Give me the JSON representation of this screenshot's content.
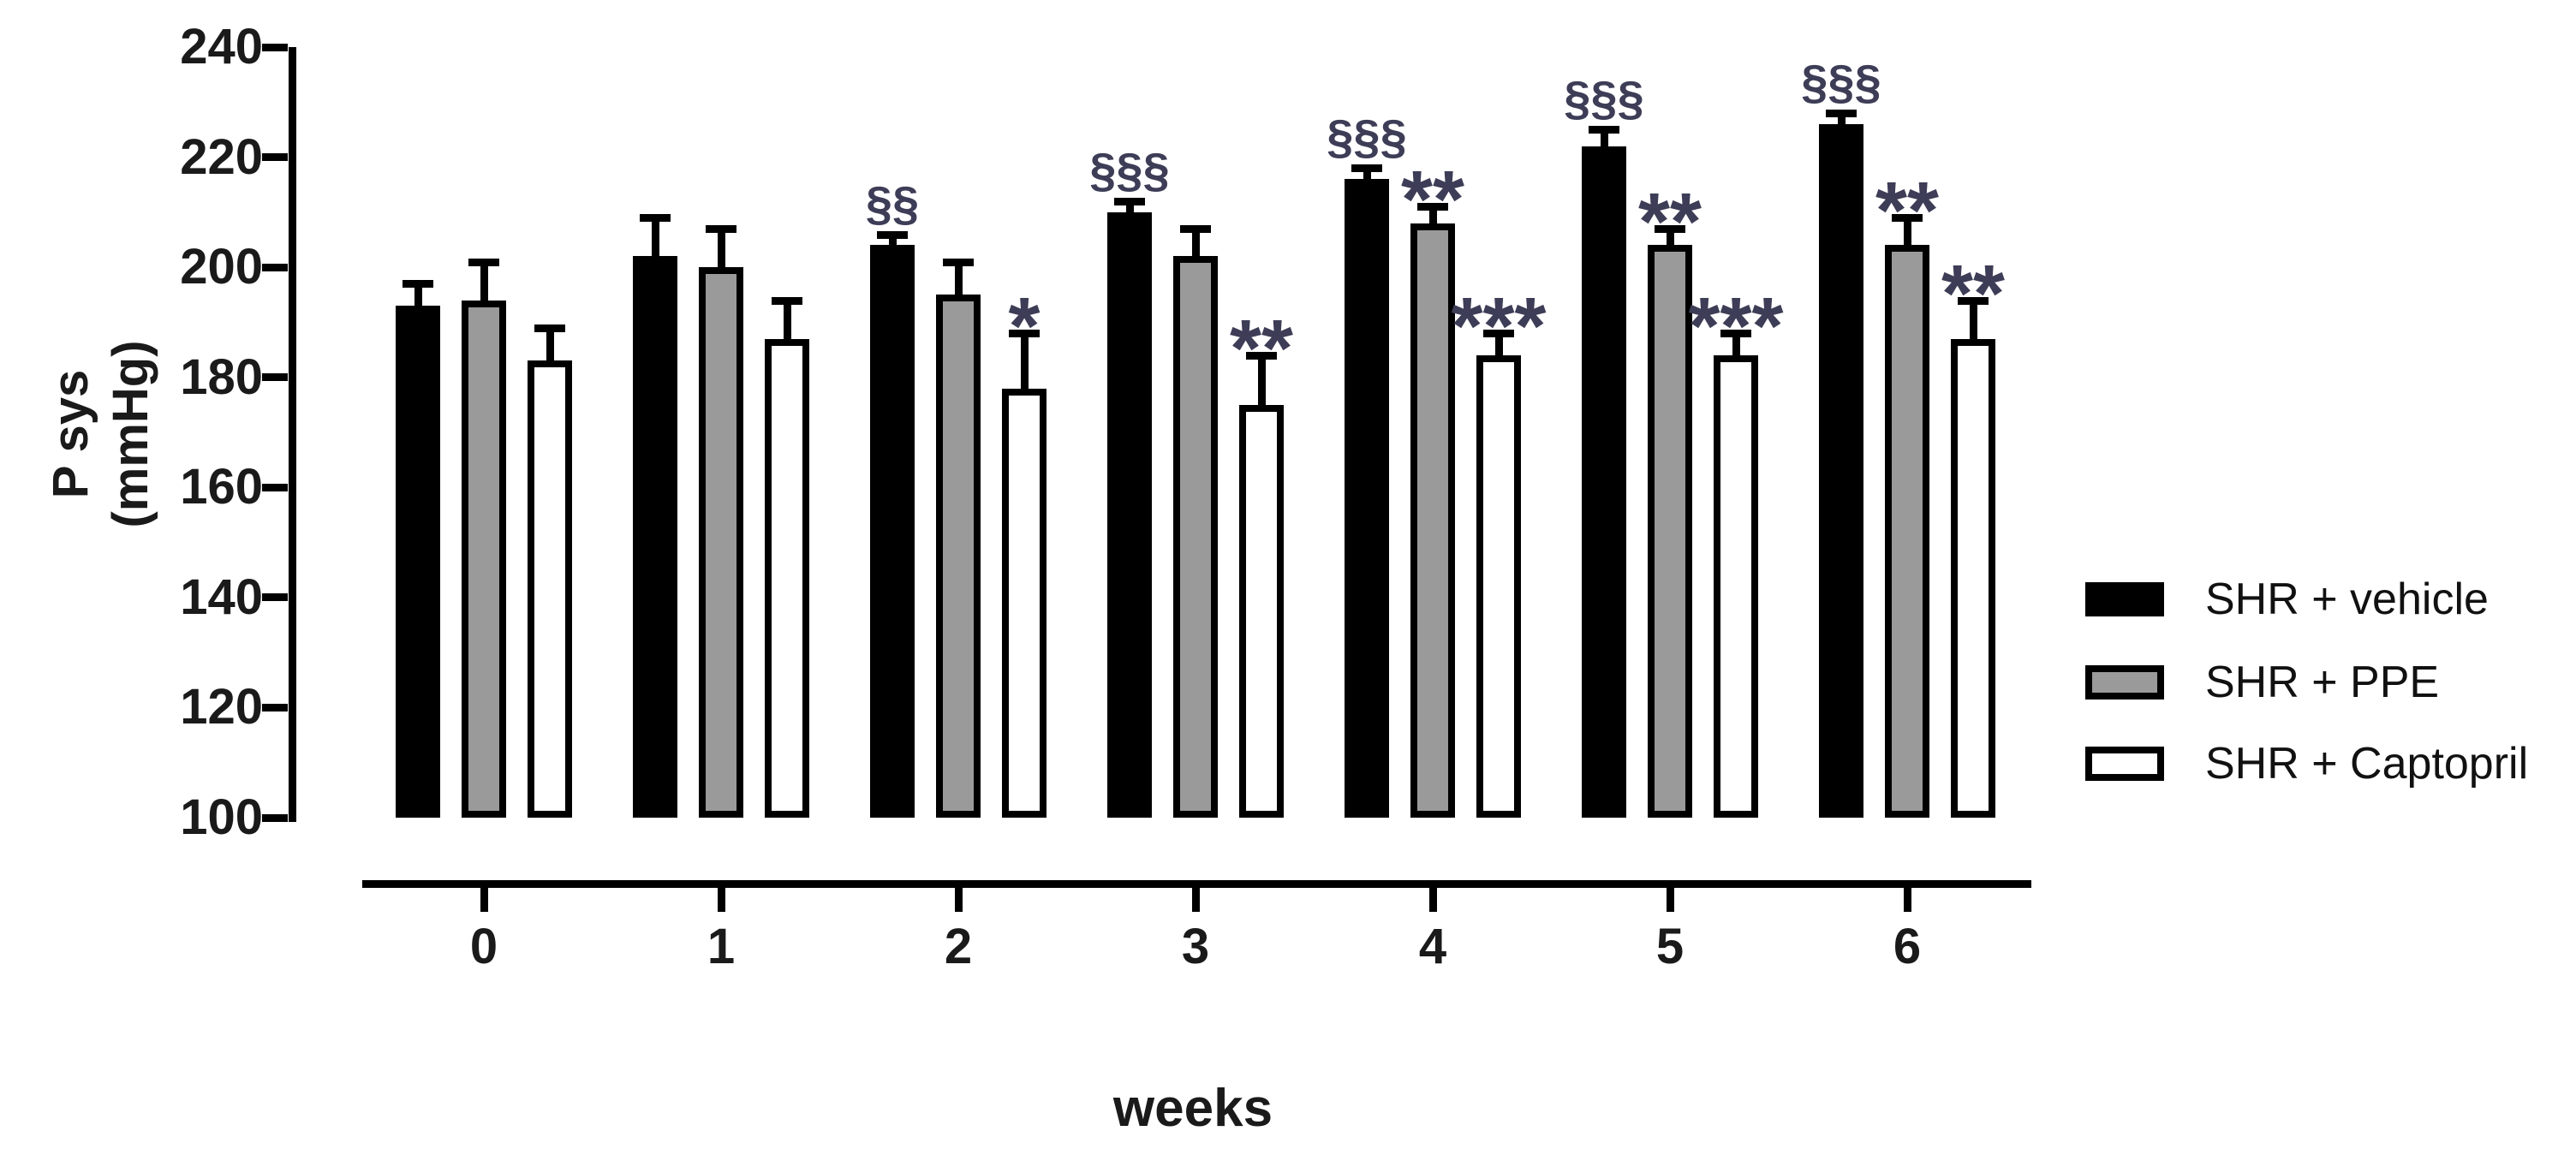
{
  "chart_data": {
    "type": "bar",
    "title": "",
    "xlabel": "weeks",
    "ylabel": "P sys (mmHg)",
    "ylabel_lines": [
      "P sys",
      "(mmHg)"
    ],
    "ylim": [
      100,
      240
    ],
    "bar_baseline": 100,
    "yticks": [
      240,
      220,
      200,
      180,
      160,
      140,
      120,
      100
    ],
    "categories": [
      "0",
      "1",
      "2",
      "3",
      "4",
      "5",
      "6"
    ],
    "grid": false,
    "legend_position": "right",
    "axis_color": "#000000",
    "annotation_color": "#3D3D57",
    "series": [
      {
        "name": "SHR + vehicle",
        "fill": "#000000",
        "border": "#000000",
        "values": [
          193,
          202,
          204,
          210,
          216,
          222,
          226
        ],
        "sem": [
          4,
          7,
          2,
          2,
          2,
          3,
          2
        ],
        "annotations": [
          "",
          "",
          "§§",
          "§§§",
          "§§§",
          "§§§",
          "§§§"
        ]
      },
      {
        "name": "SHR + PPE",
        "fill": "#9A9A9A",
        "border": "#000000",
        "values": [
          194,
          200,
          195,
          202,
          208,
          204,
          204
        ],
        "sem": [
          7,
          7,
          6,
          5,
          3,
          3,
          5
        ],
        "annotations": [
          "",
          "",
          "",
          "",
          "**",
          "**",
          "**"
        ]
      },
      {
        "name": "SHR + Captopril",
        "fill": "#FFFFFF",
        "border": "#000000",
        "values": [
          183,
          187,
          178,
          175,
          184,
          184,
          187
        ],
        "sem": [
          6,
          7,
          10,
          9,
          4,
          4,
          7
        ],
        "annotations": [
          "",
          "",
          "*",
          "**",
          "***",
          "***",
          "**"
        ]
      }
    ]
  }
}
